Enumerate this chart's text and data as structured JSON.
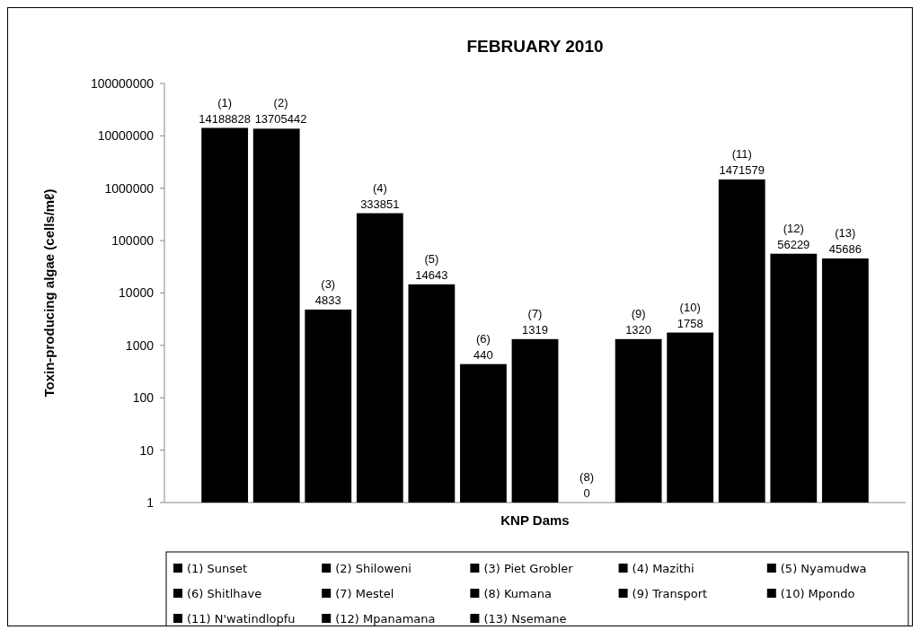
{
  "chart_data": {
    "type": "bar",
    "title": "FEBRUARY 2010",
    "xlabel": "KNP Dams",
    "ylabel": "Toxin-producing algae (cells/mℓ)",
    "categories": [
      null
    ],
    "log": "y",
    "ylim": [
      1,
      100000000
    ],
    "yticks": [
      1,
      10,
      100,
      1000,
      10000,
      100000,
      1000000,
      10000000,
      {
        "value": 100000000,
        "label": "100000000"
      }
    ],
    "grid": false,
    "legend": "bottom",
    "series": [
      {
        "name": "(1) Sunset",
        "color": "#000000",
        "values": [
          14188828
        ],
        "value_labels": [
          "(1)\n14188828"
        ]
      },
      {
        "name": "(2) Shiloweni",
        "color": "#000000",
        "values": [
          13705442
        ],
        "value_labels": [
          "(2)\n13705442"
        ]
      },
      {
        "name": "(3) Piet Grobler",
        "color": "#000000",
        "values": [
          4833
        ],
        "value_labels": [
          "(3)\n4833"
        ]
      },
      {
        "name": "(4) Mazithi",
        "color": "#000000",
        "values": [
          333851
        ],
        "value_labels": [
          "(4)\n333851"
        ]
      },
      {
        "name": "(5) Nyamudwa",
        "color": "#000000",
        "values": [
          14643
        ],
        "value_labels": [
          "(5)\n14643"
        ]
      },
      {
        "name": "(6) Shitlhave",
        "color": "#000000",
        "values": [
          440
        ],
        "value_labels": [
          "(6)\n440"
        ]
      },
      {
        "name": "(7) Mestel",
        "color": "#000000",
        "values": [
          1319
        ],
        "value_labels": [
          "(7)\n1319"
        ]
      },
      {
        "name": "(8) Kumana",
        "color": "#000000",
        "values": [
          null
        ],
        "value_labels": [
          "(8)\n0"
        ]
      },
      {
        "name": "(9) Transport",
        "color": "#000000",
        "values": [
          1320
        ],
        "value_labels": [
          "(9)\n1320"
        ]
      },
      {
        "name": "(10) Mpondo",
        "color": "#000000",
        "values": [
          1758
        ],
        "value_labels": [
          "(10)\n1758"
        ]
      },
      {
        "name": "(11) N'watindlopfu",
        "color": "#000000",
        "values": [
          1471579
        ],
        "value_labels": [
          "(11)\n1471579"
        ]
      },
      {
        "name": "(12) Mpanamana",
        "color": "#000000",
        "values": [
          56229
        ],
        "value_labels": [
          "(12)\n56229"
        ]
      },
      {
        "name": "(13) Nsemane",
        "color": "#000000",
        "values": [
          45686
        ],
        "value_labels": [
          "(13)\n45686"
        ]
      }
    ]
  }
}
